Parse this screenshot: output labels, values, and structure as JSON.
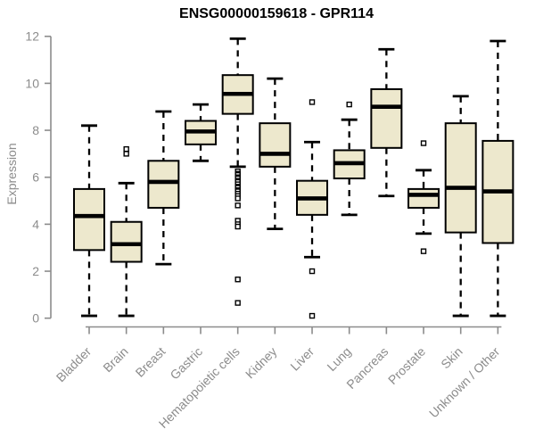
{
  "chart_data": {
    "type": "boxplot",
    "title": "ENSG00000159618 - GPR114",
    "ylabel": "Expression",
    "xlabel": "",
    "ylim": [
      0,
      12
    ],
    "yticks": [
      0,
      2,
      4,
      6,
      8,
      10,
      12
    ],
    "grid": false,
    "legend": "none",
    "categories": [
      "Bladder",
      "Brain",
      "Breast",
      "Gastric",
      "Hematopoietic cells",
      "Kidney",
      "Liver",
      "Lung",
      "Pancreas",
      "Prostate",
      "Skin",
      "Unknown / Other"
    ],
    "boxes": [
      {
        "category": "Bladder",
        "whisker_low": 0.1,
        "q1": 2.9,
        "median": 4.35,
        "q3": 5.5,
        "whisker_high": 8.2,
        "outliers": []
      },
      {
        "category": "Brain",
        "whisker_low": 0.1,
        "q1": 2.4,
        "median": 3.15,
        "q3": 4.1,
        "whisker_high": 5.75,
        "outliers": [
          7.0,
          7.2
        ]
      },
      {
        "category": "Breast",
        "whisker_low": 2.3,
        "q1": 4.7,
        "median": 5.8,
        "q3": 6.7,
        "whisker_high": 8.8,
        "outliers": []
      },
      {
        "category": "Gastric",
        "whisker_low": 6.7,
        "q1": 7.4,
        "median": 7.95,
        "q3": 8.4,
        "whisker_high": 9.1,
        "outliers": []
      },
      {
        "category": "Hematopoietic cells",
        "whisker_low": 6.45,
        "q1": 8.7,
        "median": 9.55,
        "q3": 10.35,
        "whisker_high": 11.9,
        "outliers": [
          6.25,
          6.15,
          6.1,
          6.0,
          5.95,
          5.85,
          5.8,
          5.7,
          5.6,
          5.55,
          5.45,
          5.4,
          5.3,
          5.2,
          5.1,
          4.8,
          4.15,
          4.0,
          3.9,
          1.65,
          0.65
        ]
      },
      {
        "category": "Kidney",
        "whisker_low": 3.8,
        "q1": 6.45,
        "median": 7.0,
        "q3": 8.3,
        "whisker_high": 10.2,
        "outliers": []
      },
      {
        "category": "Liver",
        "whisker_low": 2.6,
        "q1": 4.4,
        "median": 5.1,
        "q3": 5.85,
        "whisker_high": 7.5,
        "outliers": [
          9.2,
          2.0,
          0.1
        ]
      },
      {
        "category": "Lung",
        "whisker_low": 4.4,
        "q1": 5.95,
        "median": 6.6,
        "q3": 7.15,
        "whisker_high": 8.45,
        "outliers": [
          9.1
        ]
      },
      {
        "category": "Pancreas",
        "whisker_low": 5.2,
        "q1": 7.25,
        "median": 9.0,
        "q3": 9.75,
        "whisker_high": 11.45,
        "outliers": []
      },
      {
        "category": "Prostate",
        "whisker_low": 3.6,
        "q1": 4.7,
        "median": 5.25,
        "q3": 5.5,
        "whisker_high": 6.3,
        "outliers": [
          7.45,
          2.85
        ]
      },
      {
        "category": "Skin",
        "whisker_low": 0.1,
        "q1": 3.65,
        "median": 5.55,
        "q3": 8.3,
        "whisker_high": 9.45,
        "outliers": []
      },
      {
        "category": "Unknown / Other",
        "whisker_low": 0.1,
        "q1": 3.2,
        "median": 5.4,
        "q3": 7.55,
        "whisker_high": 11.8,
        "outliers": []
      }
    ],
    "colors": {
      "background": "#ffffff",
      "box_fill": "#ede8cd",
      "box_border": "#000000",
      "median": "#000000",
      "whisker": "#000000",
      "outlier": "#000000",
      "axis": "#8c8c8c",
      "tick_label": "#8c8c8c",
      "title": "#000000"
    }
  }
}
